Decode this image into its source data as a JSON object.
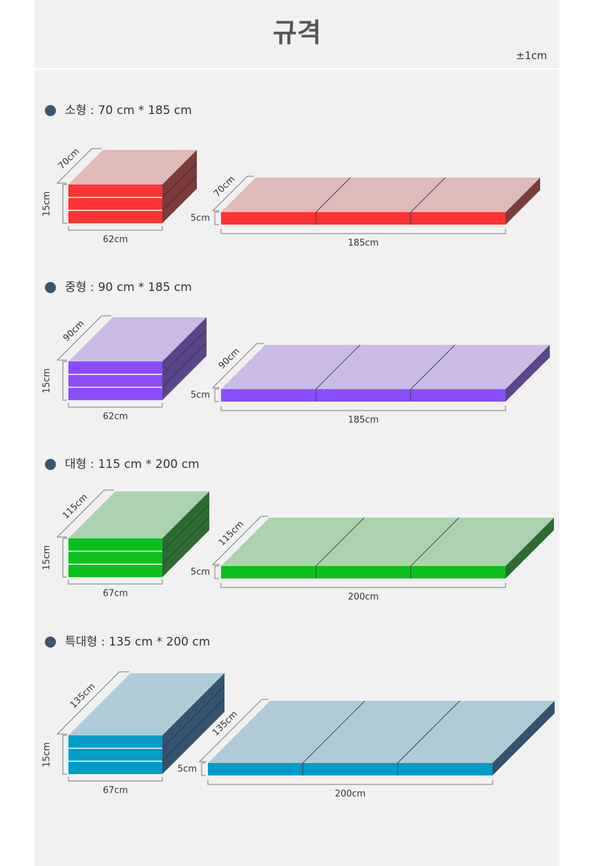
{
  "header": {
    "title": "규격",
    "tolerance": "±1cm"
  },
  "sections": [
    {
      "heading": "소형 : 70 cm * 185 cm",
      "folded": {
        "depth": "70cm",
        "height": "15cm",
        "width": "62cm"
      },
      "unfolded": {
        "depth": "70cm",
        "height": "5cm",
        "length": "185cm"
      },
      "colors": {
        "front": "#ff3333",
        "top": "#e0b9b9",
        "side": "#7a3b3b"
      }
    },
    {
      "heading": "중형 : 90 cm * 185 cm",
      "folded": {
        "depth": "90cm",
        "height": "15cm",
        "width": "62cm"
      },
      "unfolded": {
        "depth": "90cm",
        "height": "5cm",
        "length": "185cm"
      },
      "colors": {
        "front": "#8a4dff",
        "top": "#cabbe6",
        "side": "#5a4588"
      }
    },
    {
      "heading": "대형 : 115 cm * 200 cm",
      "folded": {
        "depth": "115cm",
        "height": "15cm",
        "width": "67cm"
      },
      "unfolded": {
        "depth": "115cm",
        "height": "5cm",
        "length": "200cm"
      },
      "colors": {
        "front": "#0dbf1d",
        "top": "#acd3b0",
        "side": "#2d6b32"
      }
    },
    {
      "heading": "특대형 : 135 cm * 200 cm",
      "folded": {
        "depth": "135cm",
        "height": "15cm",
        "width": "67cm"
      },
      "unfolded": {
        "depth": "135cm",
        "height": "5cm",
        "length": "200cm"
      },
      "colors": {
        "front": "#009ccb",
        "top": "#aeccd8",
        "side": "#34536f"
      }
    }
  ]
}
